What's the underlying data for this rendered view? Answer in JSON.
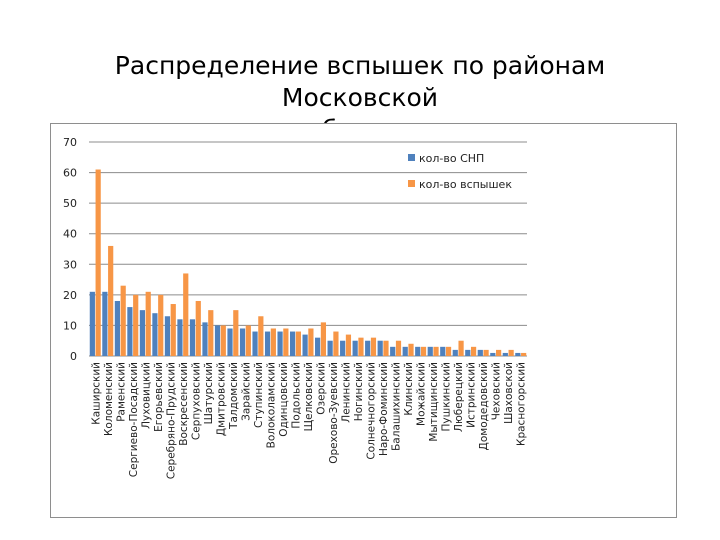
{
  "title": "Распределение вспышек по районам Московской\nобласти",
  "chart_data": {
    "type": "bar",
    "title": "",
    "xlabel": "",
    "ylabel": "",
    "ylim": [
      0,
      70
    ],
    "yticks": [
      0,
      10,
      20,
      30,
      40,
      50,
      60,
      70
    ],
    "grid": true,
    "legend_position": "right",
    "categories": [
      "Каширский",
      "Коломенский",
      "Раменский",
      "Сергиево-Посадский",
      "Луховицкий",
      "Егорьевский",
      "Серебряно-Прудский",
      "Воскресенский",
      "Серпуховский",
      "Шатурский",
      "Дмитровский",
      "Талдомский",
      "Зарайский",
      "Ступинский",
      "Волоколамский",
      "Одинцовский",
      "Подольский",
      "Щелковский",
      "Озерский",
      "Орехово-Зуевский",
      "Ленинский",
      "Ногинский",
      "Солнечногорский",
      "Наро-Фоминский",
      "Балашихинский",
      "Клинский",
      "Можайский",
      "Мытищинский",
      "Пушкинский",
      "Люберецкий",
      "Истринский",
      "Домодедовский",
      "Чеховский",
      "Шаховской",
      "Красногорский"
    ],
    "series": [
      {
        "name": "кол-во СНП",
        "color": "#4f81bd",
        "values": [
          21,
          21,
          18,
          16,
          15,
          14,
          13,
          12,
          12,
          11,
          10,
          9,
          9,
          8,
          8,
          8,
          8,
          7,
          6,
          5,
          5,
          5,
          5,
          5,
          3,
          3,
          3,
          3,
          3,
          2,
          2,
          2,
          1,
          1,
          1
        ]
      },
      {
        "name": "кол-во вспышек",
        "color": "#f79646",
        "values": [
          61,
          36,
          23,
          20,
          21,
          20,
          17,
          27,
          18,
          15,
          10,
          15,
          10,
          13,
          9,
          9,
          8,
          9,
          11,
          8,
          7,
          6,
          6,
          5,
          5,
          4,
          3,
          3,
          3,
          5,
          3,
          2,
          2,
          2,
          1
        ]
      }
    ]
  }
}
